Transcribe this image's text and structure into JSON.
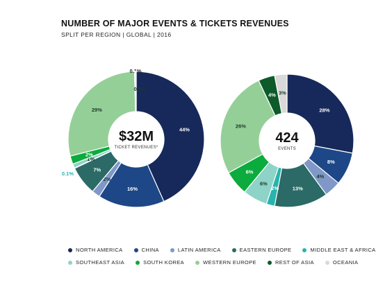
{
  "header": {
    "title": "NUMBER OF MAJOR EVENTS & TICKETS REVENUES",
    "subtitle": "SPLIT PER REGION | GLOBAL | 2016"
  },
  "colors": {
    "NORTH AMERICA": "#16295a",
    "CHINA": "#1e4787",
    "LATIN AMERICA": "#7f98c7",
    "EASTERN EUROPE": "#2b6a66",
    "MIDDLE EAST & AFRICA": "#27b4ad",
    "SOUTHEAST ASIA": "#8ed3c8",
    "SOUTH KOREA": "#0bab3d",
    "WESTERN EUROPE": "#95cf98",
    "REST OF ASIA": "#0d5a2a",
    "OCEANIA": "#d9d9d9"
  },
  "legend": [
    [
      "NORTH AMERICA",
      "CHINA",
      "LATIN AMERICA",
      "EASTERN EUROPE",
      "MIDDLE EAST & AFRICA"
    ],
    [
      "SOUTHEAST ASIA",
      "SOUTH KOREA",
      "WESTERN EUROPE",
      "REST OF ASIA",
      "OCEANIA"
    ]
  ],
  "chart_data": [
    {
      "type": "pie",
      "center_value": "$32M",
      "center_label": "TICKET REVENUES*",
      "slices": [
        {
          "name": "NORTH AMERICA",
          "value": 44,
          "label": "44%"
        },
        {
          "name": "CHINA",
          "value": 16,
          "label": "16%"
        },
        {
          "name": "LATIN AMERICA",
          "value": 2,
          "label": "2%"
        },
        {
          "name": "EASTERN EUROPE",
          "value": 7,
          "label": "7%"
        },
        {
          "name": "MIDDLE EAST & AFRICA",
          "value": 0.1,
          "label": "0.1%"
        },
        {
          "name": "SOUTHEAST ASIA",
          "value": 1,
          "label": "1%"
        },
        {
          "name": "SOUTH KOREA",
          "value": 2,
          "label": "2%"
        },
        {
          "name": "WESTERN EUROPE",
          "value": 29,
          "label": "29%"
        },
        {
          "name": "REST OF ASIA",
          "value": 0.1,
          "label": "0.1%"
        },
        {
          "name": "OCEANIA",
          "value": 0.3,
          "label": "0.3%"
        }
      ]
    },
    {
      "type": "pie",
      "center_value": "424",
      "center_label": "EVENTS",
      "slices": [
        {
          "name": "NORTH AMERICA",
          "value": 28,
          "label": "28%"
        },
        {
          "name": "CHINA",
          "value": 8,
          "label": "8%"
        },
        {
          "name": "LATIN AMERICA",
          "value": 4,
          "label": "4%"
        },
        {
          "name": "EASTERN EUROPE",
          "value": 13,
          "label": "13%"
        },
        {
          "name": "MIDDLE EAST & AFRICA",
          "value": 2,
          "label": "2%"
        },
        {
          "name": "SOUTHEAST ASIA",
          "value": 6,
          "label": "6%"
        },
        {
          "name": "SOUTH KOREA",
          "value": 6,
          "label": "6%"
        },
        {
          "name": "WESTERN EUROPE",
          "value": 26,
          "label": "26%"
        },
        {
          "name": "REST OF ASIA",
          "value": 4,
          "label": "4%"
        },
        {
          "name": "OCEANIA",
          "value": 3,
          "label": "3%"
        }
      ]
    }
  ]
}
